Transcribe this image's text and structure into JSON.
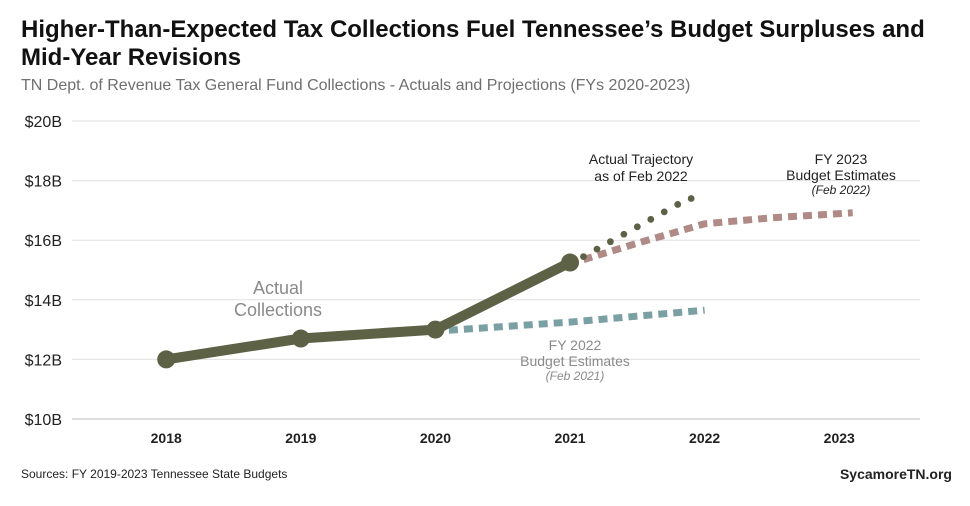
{
  "header": {
    "title": "Higher-Than-Expected Tax Collections Fuel Tennessee’s Budget Surpluses and Mid-Year Revisions",
    "subtitle": "TN Dept. of Revenue Tax General Fund Collections - Actuals and Projections (FYs 2020-2023)"
  },
  "footer": {
    "source": "Sources: FY 2019-2023 Tennessee State Budgets",
    "brand": "SycamoreTN.org"
  },
  "chart_data": {
    "type": "line",
    "x": [
      2018,
      2019,
      2020,
      2021,
      2022,
      2023
    ],
    "xlim": [
      2017.3,
      2023.6
    ],
    "ylim": [
      10,
      20
    ],
    "y_ticks": [
      10,
      12,
      14,
      16,
      18,
      20
    ],
    "y_tick_labels": [
      "$10B",
      "$12B",
      "$14B",
      "$16B",
      "$18B",
      "$20B"
    ],
    "grid": true,
    "series": [
      {
        "key": "actual",
        "label_lines": [
          "Actual",
          "Collections"
        ],
        "color": "#5d6145",
        "style": "solid-with-markers",
        "points": [
          [
            2018,
            12.0
          ],
          [
            2019,
            12.7
          ],
          [
            2020,
            13.0
          ],
          [
            2021,
            15.25
          ]
        ]
      },
      {
        "key": "trajectory",
        "label_lines": [
          "Actual Trajectory",
          "as of Feb 2022"
        ],
        "color": "#5d6145",
        "style": "dotted",
        "points": [
          [
            2021.1,
            15.45
          ],
          [
            2021.2,
            15.7
          ],
          [
            2021.3,
            15.95
          ],
          [
            2021.4,
            16.2
          ],
          [
            2021.5,
            16.45
          ],
          [
            2021.6,
            16.7
          ],
          [
            2021.7,
            16.95
          ],
          [
            2021.8,
            17.2
          ],
          [
            2021.9,
            17.4
          ]
        ]
      },
      {
        "key": "fy2023",
        "label_lines": [
          "FY 2023",
          "Budget Estimates"
        ],
        "label_note": "(Feb 2022)",
        "color": "#b08a86",
        "style": "dashed",
        "points": [
          [
            2021.1,
            15.35
          ],
          [
            2021.5,
            15.9
          ],
          [
            2022,
            16.55
          ],
          [
            2022.5,
            16.75
          ],
          [
            2023.1,
            16.92
          ]
        ]
      },
      {
        "key": "fy2022",
        "label_lines": [
          "FY 2022",
          "Budget Estimates"
        ],
        "label_note": "(Feb 2021)",
        "color": "#7ba0a4",
        "style": "dashed",
        "points": [
          [
            2020.1,
            12.98
          ],
          [
            2021,
            13.25
          ],
          [
            2022,
            13.65
          ]
        ]
      }
    ]
  }
}
